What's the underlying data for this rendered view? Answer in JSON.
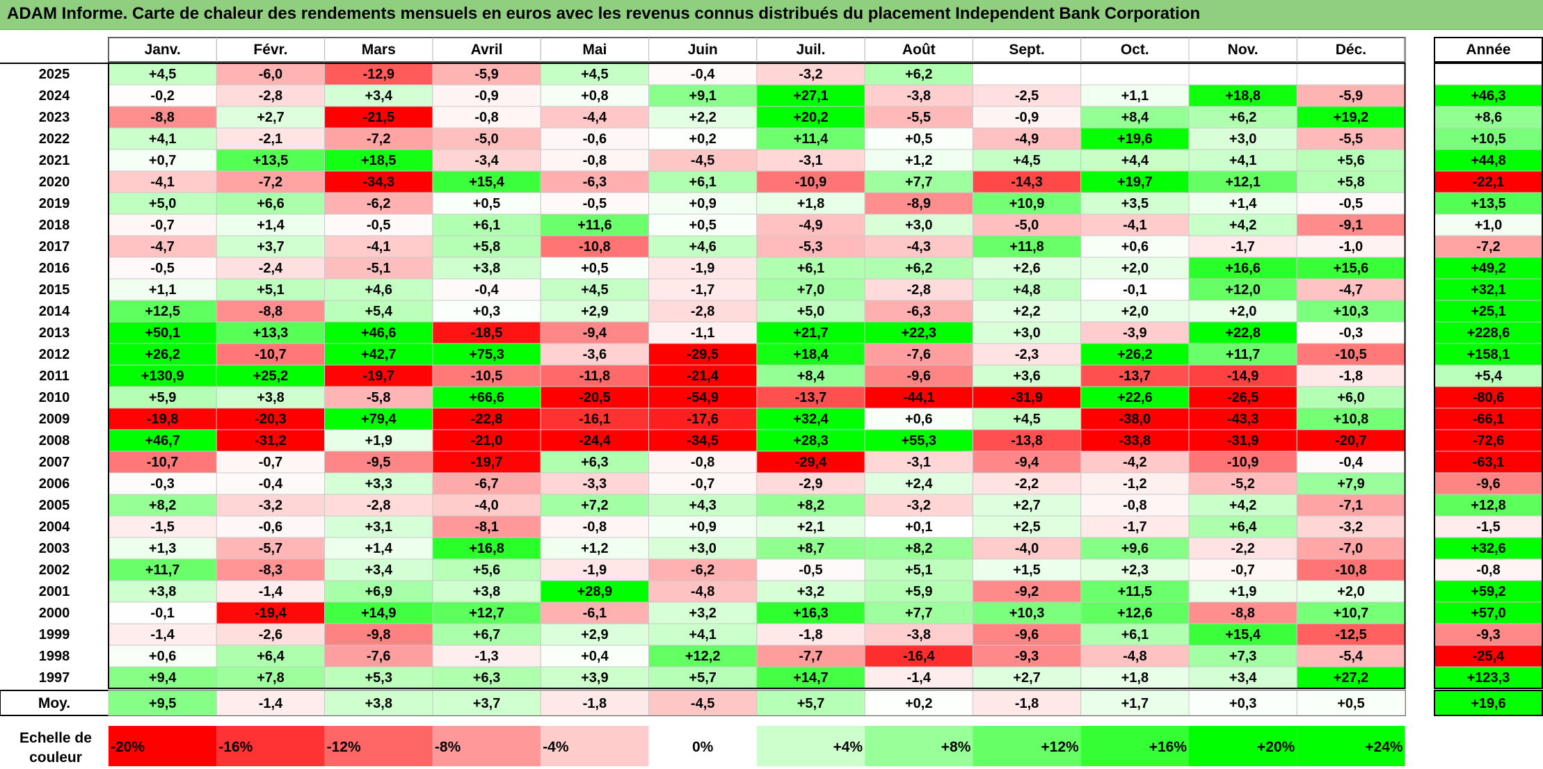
{
  "title": "ADAM Informe. Carte de chaleur des rendements mensuels en euros avec les revenus connus distribués du placement Independent Bank Corporation",
  "chart_data": {
    "type": "heatmap",
    "columns": [
      "Janv.",
      "Févr.",
      "Mars",
      "Avril",
      "Mai",
      "Juin",
      "Juil.",
      "Août",
      "Sept.",
      "Oct.",
      "Nov.",
      "Déc."
    ],
    "annual_label": "Année",
    "rows": [
      {
        "year": "2025",
        "values": [
          "+4,5",
          "-6,0",
          "-12,9",
          "-5,9",
          "+4,5",
          "-0,4",
          "-3,2",
          "+6,2",
          "",
          "",
          "",
          ""
        ],
        "annual": ""
      },
      {
        "year": "2024",
        "values": [
          "-0,2",
          "-2,8",
          "+3,4",
          "-0,9",
          "+0,8",
          "+9,1",
          "+27,1",
          "-3,8",
          "-2,5",
          "+1,1",
          "+18,8",
          "-5,9"
        ],
        "annual": "+46,3"
      },
      {
        "year": "2023",
        "values": [
          "-8,8",
          "+2,7",
          "-21,5",
          "-0,8",
          "-4,4",
          "+2,2",
          "+20,2",
          "-5,5",
          "-0,9",
          "+8,4",
          "+6,2",
          "+19,2"
        ],
        "annual": "+8,6"
      },
      {
        "year": "2022",
        "values": [
          "+4,1",
          "-2,1",
          "-7,2",
          "-5,0",
          "-0,6",
          "+0,2",
          "+11,4",
          "+0,5",
          "-4,9",
          "+19,6",
          "+3,0",
          "-5,5"
        ],
        "annual": "+10,5"
      },
      {
        "year": "2021",
        "values": [
          "+0,7",
          "+13,5",
          "+18,5",
          "-3,4",
          "-0,8",
          "-4,5",
          "-3,1",
          "+1,2",
          "+4,5",
          "+4,4",
          "+4,1",
          "+5,6"
        ],
        "annual": "+44,8"
      },
      {
        "year": "2020",
        "values": [
          "-4,1",
          "-7,2",
          "-34,3",
          "+15,4",
          "-6,3",
          "+6,1",
          "-10,9",
          "+7,7",
          "-14,3",
          "+19,7",
          "+12,1",
          "+5,8"
        ],
        "annual": "-22,1"
      },
      {
        "year": "2019",
        "values": [
          "+5,0",
          "+6,6",
          "-6,2",
          "+0,5",
          "-0,5",
          "+0,9",
          "+1,8",
          "-8,9",
          "+10,9",
          "+3,5",
          "+1,4",
          "-0,5"
        ],
        "annual": "+13,5"
      },
      {
        "year": "2018",
        "values": [
          "-0,7",
          "+1,4",
          "-0,5",
          "+6,1",
          "+11,6",
          "+0,5",
          "-4,9",
          "+3,0",
          "-5,0",
          "-4,1",
          "+4,2",
          "-9,1"
        ],
        "annual": "+1,0"
      },
      {
        "year": "2017",
        "values": [
          "-4,7",
          "+3,7",
          "-4,1",
          "+5,8",
          "-10,8",
          "+4,6",
          "-5,3",
          "-4,3",
          "+11,8",
          "+0,6",
          "-1,7",
          "-1,0"
        ],
        "annual": "-7,2"
      },
      {
        "year": "2016",
        "values": [
          "-0,5",
          "-2,4",
          "-5,1",
          "+3,8",
          "+0,5",
          "-1,9",
          "+6,1",
          "+6,2",
          "+2,6",
          "+2,0",
          "+16,6",
          "+15,6"
        ],
        "annual": "+49,2"
      },
      {
        "year": "2015",
        "values": [
          "+1,1",
          "+5,1",
          "+4,6",
          "-0,4",
          "+4,5",
          "-1,7",
          "+7,0",
          "-2,8",
          "+4,8",
          "-0,1",
          "+12,0",
          "-4,7"
        ],
        "annual": "+32,1"
      },
      {
        "year": "2014",
        "values": [
          "+12,5",
          "-8,8",
          "+5,4",
          "+0,3",
          "+2,9",
          "-2,8",
          "+5,0",
          "-6,3",
          "+2,2",
          "+2,0",
          "+2,0",
          "+10,3"
        ],
        "annual": "+25,1"
      },
      {
        "year": "2013",
        "values": [
          "+50,1",
          "+13,3",
          "+46,6",
          "-18,5",
          "-9,4",
          "-1,1",
          "+21,7",
          "+22,3",
          "+3,0",
          "-3,9",
          "+22,8",
          "-0,3"
        ],
        "annual": "+228,6"
      },
      {
        "year": "2012",
        "values": [
          "+26,2",
          "-10,7",
          "+42,7",
          "+75,3",
          "-3,6",
          "-29,5",
          "+18,4",
          "-7,6",
          "-2,3",
          "+26,2",
          "+11,7",
          "-10,5"
        ],
        "annual": "+158,1"
      },
      {
        "year": "2011",
        "values": [
          "+130,9",
          "+25,2",
          "-19,7",
          "-10,5",
          "-11,8",
          "-21,4",
          "+8,4",
          "-9,6",
          "+3,6",
          "-13,7",
          "-14,9",
          "-1,8"
        ],
        "annual": "+5,4"
      },
      {
        "year": "2010",
        "values": [
          "+5,9",
          "+3,8",
          "-5,8",
          "+66,6",
          "-20,5",
          "-54,9",
          "-13,7",
          "-44,1",
          "-31,9",
          "+22,6",
          "-26,5",
          "+6,0"
        ],
        "annual": "-80,6"
      },
      {
        "year": "2009",
        "values": [
          "-19,8",
          "-20,3",
          "+79,4",
          "-22,8",
          "-16,1",
          "-17,6",
          "+32,4",
          "+0,6",
          "+4,5",
          "-38,0",
          "-43,3",
          "+10,8"
        ],
        "annual": "-66,1"
      },
      {
        "year": "2008",
        "values": [
          "+46,7",
          "-31,2",
          "+1,9",
          "-21,0",
          "-24,4",
          "-34,5",
          "+28,3",
          "+55,3",
          "-13,8",
          "-33,8",
          "-31,9",
          "-20,7"
        ],
        "annual": "-72,6"
      },
      {
        "year": "2007",
        "values": [
          "-10,7",
          "-0,7",
          "-9,5",
          "-19,7",
          "+6,3",
          "-0,8",
          "-29,4",
          "-3,1",
          "-9,4",
          "-4,2",
          "-10,9",
          "-0,4"
        ],
        "annual": "-63,1"
      },
      {
        "year": "2006",
        "values": [
          "-0,3",
          "-0,4",
          "+3,3",
          "-6,7",
          "-3,3",
          "-0,7",
          "-2,9",
          "+2,4",
          "-2,2",
          "-1,2",
          "-5,2",
          "+7,9"
        ],
        "annual": "-9,6"
      },
      {
        "year": "2005",
        "values": [
          "+8,2",
          "-3,2",
          "-2,8",
          "-4,0",
          "+7,2",
          "+4,3",
          "+8,2",
          "-3,2",
          "+2,7",
          "-0,8",
          "+4,2",
          "-7,1"
        ],
        "annual": "+12,8"
      },
      {
        "year": "2004",
        "values": [
          "-1,5",
          "-0,6",
          "+3,1",
          "-8,1",
          "-0,8",
          "+0,9",
          "+2,1",
          "+0,1",
          "+2,5",
          "-1,7",
          "+6,4",
          "-3,2"
        ],
        "annual": "-1,5"
      },
      {
        "year": "2003",
        "values": [
          "+1,3",
          "-5,7",
          "+1,4",
          "+16,8",
          "+1,2",
          "+3,0",
          "+8,7",
          "+8,2",
          "-4,0",
          "+9,6",
          "-2,2",
          "-7,0"
        ],
        "annual": "+32,6"
      },
      {
        "year": "2002",
        "values": [
          "+11,7",
          "-8,3",
          "+3,4",
          "+5,6",
          "-1,9",
          "-6,2",
          "-0,5",
          "+5,1",
          "+1,5",
          "+2,3",
          "-0,7",
          "-10,8"
        ],
        "annual": "-0,8"
      },
      {
        "year": "2001",
        "values": [
          "+3,8",
          "-1,4",
          "+6,9",
          "+3,8",
          "+28,9",
          "-4,8",
          "+3,2",
          "+5,9",
          "-9,2",
          "+11,5",
          "+1,9",
          "+2,0"
        ],
        "annual": "+59,2"
      },
      {
        "year": "2000",
        "values": [
          "-0,1",
          "-19,4",
          "+14,9",
          "+12,7",
          "-6,1",
          "+3,2",
          "+16,3",
          "+7,7",
          "+10,3",
          "+12,6",
          "-8,8",
          "+10,7"
        ],
        "annual": "+57,0"
      },
      {
        "year": "1999",
        "values": [
          "-1,4",
          "-2,6",
          "-9,8",
          "+6,7",
          "+2,9",
          "+4,1",
          "-1,8",
          "-3,8",
          "-9,6",
          "+6,1",
          "+15,4",
          "-12,5"
        ],
        "annual": "-9,3"
      },
      {
        "year": "1998",
        "values": [
          "+0,6",
          "+6,4",
          "-7,6",
          "-1,3",
          "+0,4",
          "+12,2",
          "-7,7",
          "-16,4",
          "-9,3",
          "-4,8",
          "+7,3",
          "-5,4"
        ],
        "annual": "-25,4"
      },
      {
        "year": "1997",
        "values": [
          "+9,4",
          "+7,8",
          "+5,3",
          "+6,3",
          "+3,9",
          "+5,7",
          "+14,7",
          "-1,4",
          "+2,7",
          "+1,8",
          "+3,4",
          "+27,2"
        ],
        "annual": "+123,3"
      }
    ],
    "average": {
      "label": "Moy.",
      "values": [
        "+9,5",
        "-1,4",
        "+3,8",
        "+3,7",
        "-1,8",
        "-4,5",
        "+5,7",
        "+0,2",
        "-1,8",
        "+1,7",
        "+0,3",
        "+0,5"
      ],
      "annual": "+19,6"
    },
    "legend": {
      "label_line1": "Echelle de",
      "label_line2": "couleur",
      "steps": [
        "-20%",
        "-16%",
        "-12%",
        "-8%",
        "-4%",
        "0%",
        "+4%",
        "+8%",
        "+12%",
        "+16%",
        "+20%",
        "+24%"
      ]
    },
    "colors": {
      "negative": "#ff0000",
      "neutral": "#ffffff",
      "positive": "#00ff00",
      "title_bg": "#8fcf7f"
    }
  }
}
